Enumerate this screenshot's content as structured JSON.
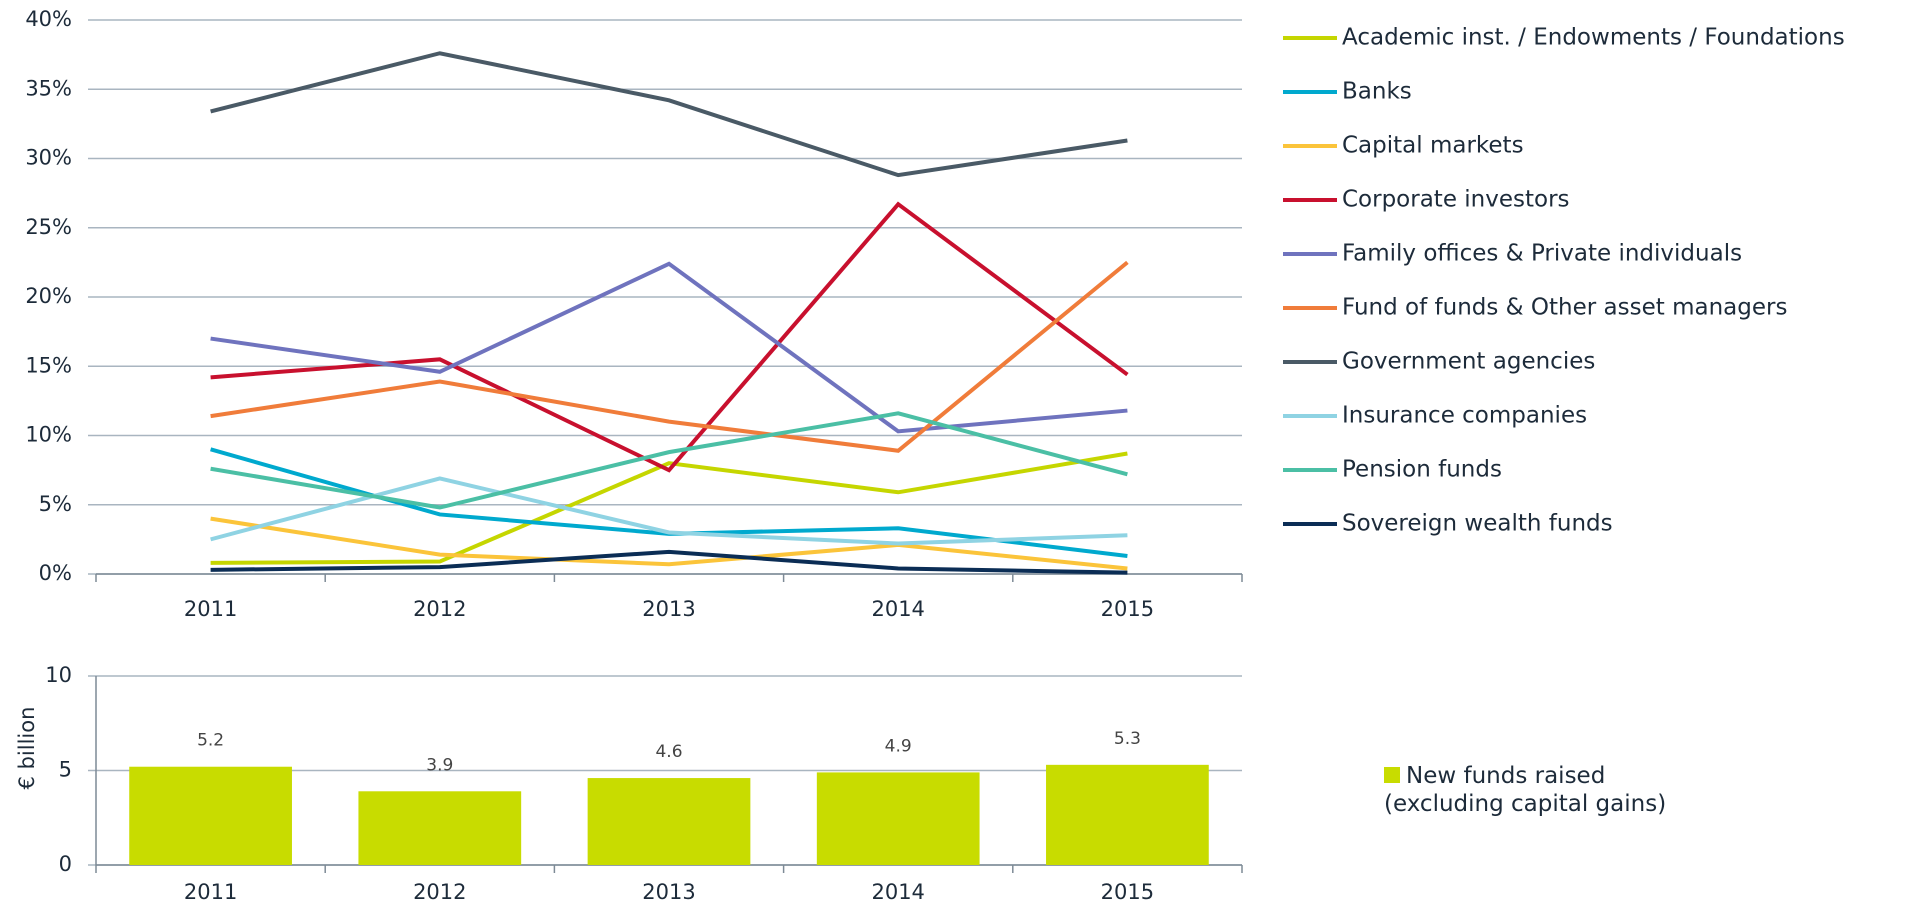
{
  "chart_data": [
    {
      "type": "line",
      "categories": [
        "2011",
        "2012",
        "2013",
        "2014",
        "2015"
      ],
      "ylim": [
        0,
        40
      ],
      "yticks": [
        {
          "value": 0,
          "label": "0%"
        },
        {
          "value": 5,
          "label": "5%"
        },
        {
          "value": 10,
          "label": "10%"
        },
        {
          "value": 15,
          "label": "15%"
        },
        {
          "value": 20,
          "label": "20%"
        },
        {
          "value": 25,
          "label": "25%"
        },
        {
          "value": 30,
          "label": "30%"
        },
        {
          "value": 35,
          "label": "35%"
        },
        {
          "value": 40,
          "label": "40%"
        }
      ],
      "grid": true,
      "series": [
        {
          "name": "Academic inst. / Endowments / Foundations",
          "color": "#c5d600",
          "values": [
            0.8,
            0.9,
            8.0,
            5.9,
            8.7
          ]
        },
        {
          "name": "Banks",
          "color": "#00a9ce",
          "values": [
            9.0,
            4.3,
            2.9,
            3.3,
            1.3
          ]
        },
        {
          "name": "Capital markets",
          "color": "#fbc43a",
          "values": [
            4.0,
            1.4,
            0.7,
            2.1,
            0.4
          ]
        },
        {
          "name": "Corporate investors",
          "color": "#c8102e",
          "values": [
            14.2,
            15.5,
            7.5,
            26.7,
            14.4
          ]
        },
        {
          "name": "Family offices & Private individuals",
          "color": "#6f73be",
          "values": [
            17.0,
            14.6,
            22.4,
            10.3,
            11.8
          ]
        },
        {
          "name": "Fund of funds & Other asset managers",
          "color": "#f07c3a",
          "values": [
            11.4,
            13.9,
            11.0,
            8.9,
            22.5
          ]
        },
        {
          "name": "Government agencies",
          "color": "#4a5a66",
          "values": [
            33.4,
            37.6,
            34.2,
            28.8,
            31.3
          ]
        },
        {
          "name": "Insurance companies",
          "color": "#8fd3e3",
          "values": [
            2.5,
            6.9,
            3.0,
            2.2,
            2.8
          ]
        },
        {
          "name": "Pension funds",
          "color": "#4bbfa5",
          "values": [
            7.6,
            4.8,
            8.8,
            11.6,
            7.2
          ]
        },
        {
          "name": "Sovereign wealth funds",
          "color": "#0b2d55",
          "values": [
            0.3,
            0.5,
            1.6,
            0.4,
            0.1
          ]
        }
      ]
    },
    {
      "type": "bar",
      "y_label": "€ billion",
      "categories": [
        "2011",
        "2012",
        "2013",
        "2014",
        "2015"
      ],
      "ylim": [
        0,
        10
      ],
      "yticks": [
        0,
        5,
        10
      ],
      "grid": true,
      "series": [
        {
          "name": "New funds raised (excluding capital gains)",
          "color": "#c8dc00",
          "values": [
            5.2,
            3.9,
            4.6,
            4.9,
            5.3
          ]
        }
      ]
    }
  ]
}
